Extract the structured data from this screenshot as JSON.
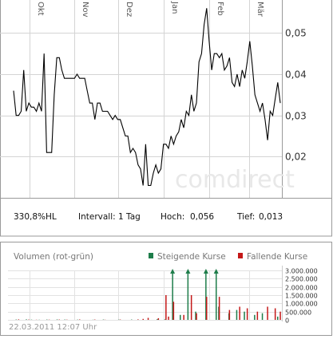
{
  "chart_data": [
    {
      "type": "line",
      "x_tick_labels": [
        "Okt",
        "Nov",
        "Dez",
        "Jan",
        "Feb",
        "Mär"
      ],
      "y_tick_labels": [
        "0,02",
        "0,03",
        "0,04",
        "0,05"
      ],
      "ylim": [
        0.01,
        0.058
      ],
      "y_ticks": [
        0.02,
        0.03,
        0.04,
        0.05
      ],
      "grid": true,
      "watermark": "comdirect",
      "series": [
        {
          "color": "#000000",
          "values": [
            0.036,
            0.03,
            0.03,
            0.031,
            0.041,
            0.031,
            0.033,
            0.032,
            0.032,
            0.031,
            0.033,
            0.031,
            0.045,
            0.021,
            0.021,
            0.021,
            0.035,
            0.044,
            0.044,
            0.041,
            0.039,
            0.039,
            0.039,
            0.039,
            0.039,
            0.04,
            0.039,
            0.039,
            0.039,
            0.036,
            0.033,
            0.033,
            0.029,
            0.033,
            0.033,
            0.031,
            0.031,
            0.031,
            0.03,
            0.029,
            0.03,
            0.029,
            0.029,
            0.027,
            0.025,
            0.025,
            0.021,
            0.022,
            0.021,
            0.018,
            0.017,
            0.013,
            0.023,
            0.013,
            0.013,
            0.016,
            0.018,
            0.016,
            0.017,
            0.023,
            0.023,
            0.022,
            0.025,
            0.023,
            0.025,
            0.026,
            0.029,
            0.027,
            0.031,
            0.03,
            0.035,
            0.031,
            0.033,
            0.043,
            0.045,
            0.052,
            0.056,
            0.048,
            0.041,
            0.045,
            0.045,
            0.044,
            0.045,
            0.041,
            0.042,
            0.044,
            0.038,
            0.037,
            0.04,
            0.037,
            0.041,
            0.039,
            0.043,
            0.048,
            0.042,
            0.035,
            0.033,
            0.031,
            0.033,
            0.029,
            0.024,
            0.031,
            0.03,
            0.034,
            0.038,
            0.033
          ]
        }
      ]
    },
    {
      "type": "bar",
      "title": "Volumen (rot-grün)",
      "y_tick_labels": [
        "3.000.000",
        "2.500.000",
        "2.000.000",
        "1.500.000",
        "1.000.000",
        "500.000",
        "0"
      ],
      "ylim": [
        0,
        3000000
      ],
      "y_ticks": [
        3000000,
        2500000,
        2000000,
        1500000,
        1000000,
        500000,
        0
      ],
      "legend": [
        {
          "label": "Steigende Kurse",
          "color": "#1e7d4a"
        },
        {
          "label": "Fallende Kurse",
          "color": "#c41818"
        }
      ],
      "series": [
        {
          "name": "Steigende Kurse",
          "color": "#1e7d4a",
          "values": [
            0,
            20000,
            0,
            0,
            0,
            30000,
            0,
            15000,
            0,
            0,
            10000,
            0,
            0,
            20000,
            0,
            0,
            0,
            25000,
            0,
            0,
            20000,
            0,
            0,
            0,
            0,
            15000,
            0,
            0,
            0,
            0,
            0,
            10000,
            0,
            0,
            0,
            20000,
            0,
            0,
            0,
            0,
            0,
            15000,
            0,
            0,
            0,
            0,
            20000,
            0,
            0,
            0,
            0,
            0,
            0,
            0,
            0,
            0,
            40000,
            0,
            0,
            30000,
            0,
            0,
            3000000,
            0,
            0,
            300000,
            0,
            0,
            3000000,
            0,
            0,
            500000,
            0,
            0,
            0,
            3000000,
            0,
            0,
            0,
            3000000,
            800000,
            0,
            0,
            0,
            400000,
            0,
            0,
            600000,
            0,
            0,
            500000,
            0,
            0,
            0,
            300000,
            0,
            0,
            400000,
            0,
            0,
            0,
            0,
            0,
            200000,
            0
          ],
          "arrows": true
        },
        {
          "name": "Fallende Kurse",
          "color": "#c41818",
          "values": [
            0,
            0,
            30000,
            0,
            0,
            0,
            20000,
            0,
            0,
            10000,
            0,
            0,
            0,
            0,
            15000,
            0,
            0,
            0,
            20000,
            0,
            0,
            15000,
            0,
            0,
            0,
            0,
            25000,
            0,
            0,
            0,
            0,
            0,
            20000,
            0,
            0,
            0,
            10000,
            0,
            0,
            0,
            0,
            0,
            20000,
            0,
            0,
            0,
            0,
            0,
            0,
            30000,
            0,
            60000,
            0,
            120000,
            0,
            0,
            0,
            100000,
            0,
            0,
            1500000,
            200000,
            0,
            1100000,
            0,
            0,
            0,
            300000,
            0,
            0,
            1500000,
            0,
            400000,
            0,
            0,
            0,
            1400000,
            0,
            0,
            0,
            0,
            1400000,
            0,
            0,
            0,
            600000,
            0,
            0,
            0,
            800000,
            0,
            0,
            700000,
            0,
            0,
            0,
            500000,
            0,
            0,
            0,
            800000,
            0,
            0,
            700000,
            0,
            500000
          ]
        }
      ]
    }
  ],
  "stats": {
    "range": "330,8%HL",
    "interval": "Intervall: 1 Tag",
    "high_label": "Hoch:",
    "high_value": "0,056",
    "low_label": "Tief:",
    "low_value": "0,013"
  },
  "timestamp": "22.03.2011 12:07 Uhr"
}
